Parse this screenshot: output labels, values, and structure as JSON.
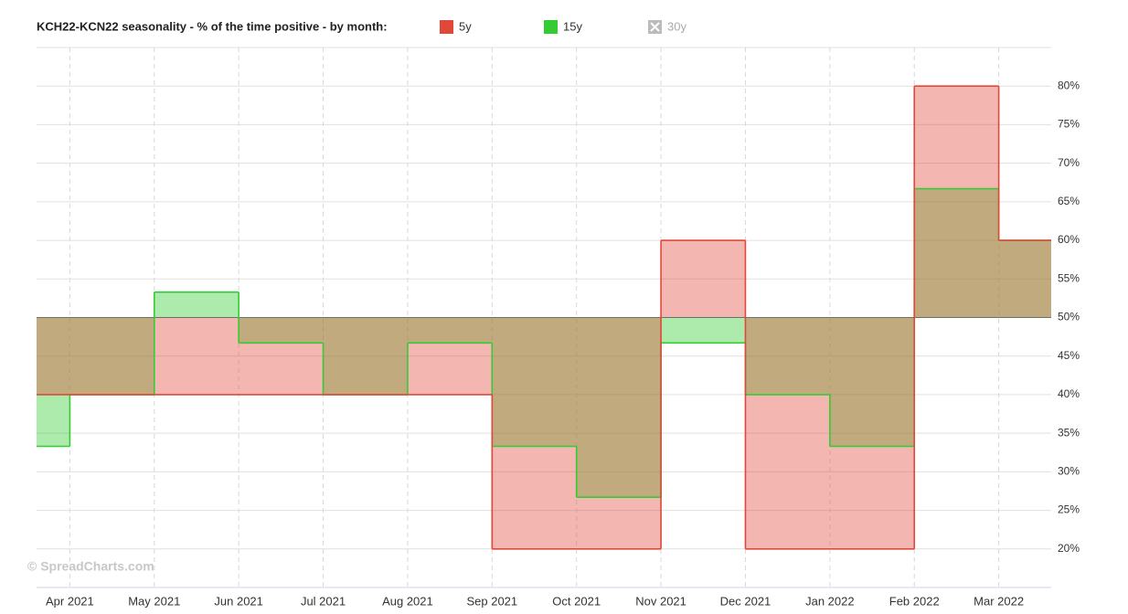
{
  "chart_data": {
    "type": "step-area",
    "title": "KCH22-KCN22 seasonality - % of the time positive - by month:",
    "watermark": "© SpreadCharts.com",
    "x": [
      "2021-03",
      "2021-04",
      "2021-05",
      "2021-06",
      "2021-07",
      "2021-08",
      "2021-09",
      "2021-10",
      "2021-11",
      "2021-12",
      "2022-01",
      "2022-02",
      "2022-03"
    ],
    "xlim": [
      "2021-03",
      "2022-04"
    ],
    "xticks": [
      {
        "value": "2021-04",
        "label": "Apr 2021"
      },
      {
        "value": "2021-05",
        "label": "May 2021"
      },
      {
        "value": "2021-06",
        "label": "Jun 2021"
      },
      {
        "value": "2021-07",
        "label": "Jul 2021"
      },
      {
        "value": "2021-08",
        "label": "Aug 2021"
      },
      {
        "value": "2021-09",
        "label": "Sep 2021"
      },
      {
        "value": "2021-10",
        "label": "Oct 2021"
      },
      {
        "value": "2021-11",
        "label": "Nov 2021"
      },
      {
        "value": "2021-12",
        "label": "Dec 2021"
      },
      {
        "value": "2022-01",
        "label": "Jan 2022"
      },
      {
        "value": "2022-02",
        "label": "Feb 2022"
      },
      {
        "value": "2022-03",
        "label": "Mar 2022"
      }
    ],
    "ylim": [
      15,
      85
    ],
    "yticks": [
      {
        "value": 20,
        "label": "20%"
      },
      {
        "value": 25,
        "label": "25%"
      },
      {
        "value": 30,
        "label": "30%"
      },
      {
        "value": 35,
        "label": "35%"
      },
      {
        "value": 40,
        "label": "40%"
      },
      {
        "value": 45,
        "label": "45%"
      },
      {
        "value": 50,
        "label": "50%"
      },
      {
        "value": 55,
        "label": "55%"
      },
      {
        "value": 60,
        "label": "60%"
      },
      {
        "value": 65,
        "label": "65%"
      },
      {
        "value": 70,
        "label": "70%"
      },
      {
        "value": 75,
        "label": "75%"
      },
      {
        "value": 80,
        "label": "80%"
      }
    ],
    "baseline": 50,
    "grid": true,
    "series": [
      {
        "name": "5y",
        "color": "#e0483a",
        "visible": true,
        "values": [
          40,
          40,
          40,
          40,
          40,
          40,
          20,
          20,
          60,
          20,
          20,
          80,
          60
        ]
      },
      {
        "name": "15y",
        "color": "#33cc33",
        "visible": true,
        "values": [
          33.3,
          40,
          53.3,
          46.7,
          40,
          46.7,
          33.3,
          26.7,
          46.7,
          40,
          33.3,
          66.7,
          60
        ]
      },
      {
        "name": "30y",
        "color": "#bbbbbb",
        "visible": false
      }
    ]
  }
}
